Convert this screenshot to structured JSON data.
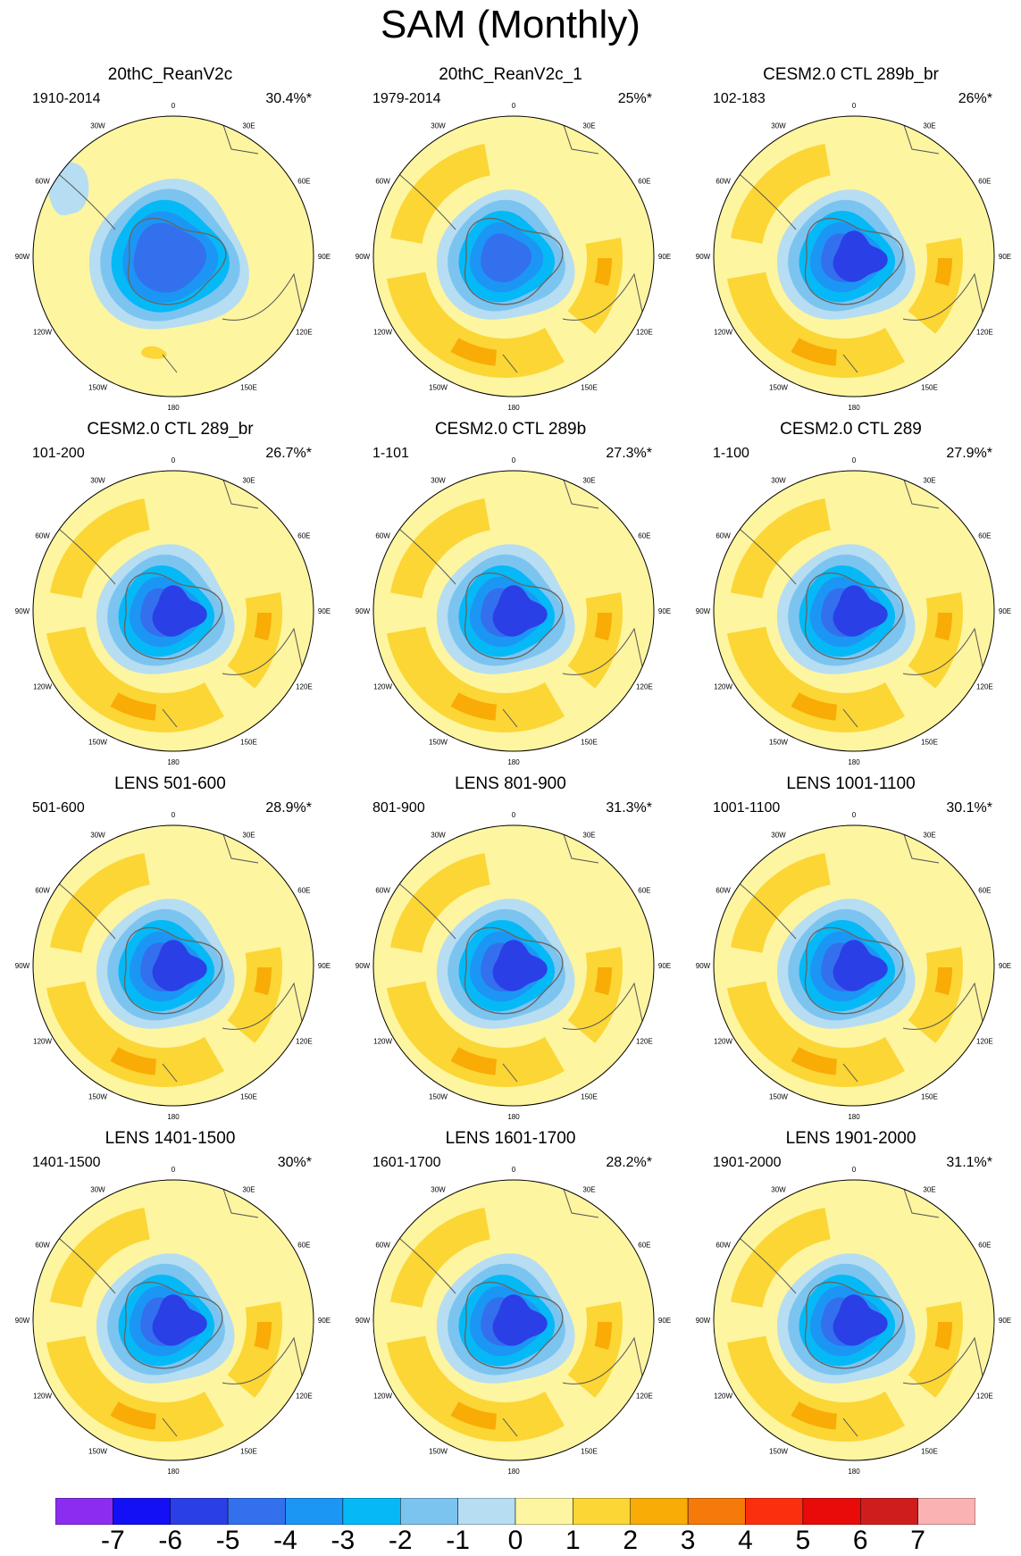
{
  "title": "SAM (Monthly)",
  "colors": {
    "land_outline": "#555555",
    "antarctica_outline": "#666666",
    "levels": [
      "#8b2df0",
      "#1410f5",
      "#2b3fe6",
      "#3370ee",
      "#1c96f5",
      "#05b9f7",
      "#7cc4f0",
      "#b6ddf2",
      "#fdf5a0",
      "#fbd635",
      "#f9ab06",
      "#f57a0a",
      "#fb2f0e",
      "#e90a0a",
      "#cf1d1d",
      "#fbb2b2"
    ]
  },
  "colorbar": {
    "labels": [
      "-7",
      "-6",
      "-5",
      "-4",
      "-3",
      "-2",
      "-1",
      "0",
      "1",
      "2",
      "3",
      "4",
      "5",
      "6",
      "7"
    ]
  },
  "lon_labels": [
    "0",
    "30E",
    "60E",
    "90E",
    "120E",
    "150E",
    "180",
    "150W",
    "120W",
    "90W",
    "60W",
    "30W"
  ],
  "panels": [
    {
      "title": "20thC_ReanV2c",
      "period": "1910-2014",
      "variance": "30.4%*",
      "style": "reanalysis"
    },
    {
      "title": "20thC_ReanV2c_1",
      "period": "1979-2014",
      "variance": "25%*",
      "style": "mixed"
    },
    {
      "title": "CESM2.0 CTL 289b_br",
      "period": "102-183",
      "variance": "26%*",
      "style": "model"
    },
    {
      "title": "CESM2.0 CTL 289_br",
      "period": "101-200",
      "variance": "26.7%*",
      "style": "model"
    },
    {
      "title": "CESM2.0 CTL 289b",
      "period": "1-101",
      "variance": "27.3%*",
      "style": "model"
    },
    {
      "title": "CESM2.0 CTL 289",
      "period": "1-100",
      "variance": "27.9%*",
      "style": "model"
    },
    {
      "title": "LENS 501-600",
      "period": "501-600",
      "variance": "28.9%*",
      "style": "lens"
    },
    {
      "title": "LENS 801-900",
      "period": "801-900",
      "variance": "31.3%*",
      "style": "lens"
    },
    {
      "title": "LENS 1001-1100",
      "period": "1001-1100",
      "variance": "30.1%*",
      "style": "lens"
    },
    {
      "title": "LENS 1401-1500",
      "period": "1401-1500",
      "variance": "30%*",
      "style": "lens"
    },
    {
      "title": "LENS 1601-1700",
      "period": "1601-1700",
      "variance": "28.2%*",
      "style": "lens"
    },
    {
      "title": "LENS 1901-2000",
      "period": "1901-2000",
      "variance": "31.1%*",
      "style": "lens"
    }
  ]
}
